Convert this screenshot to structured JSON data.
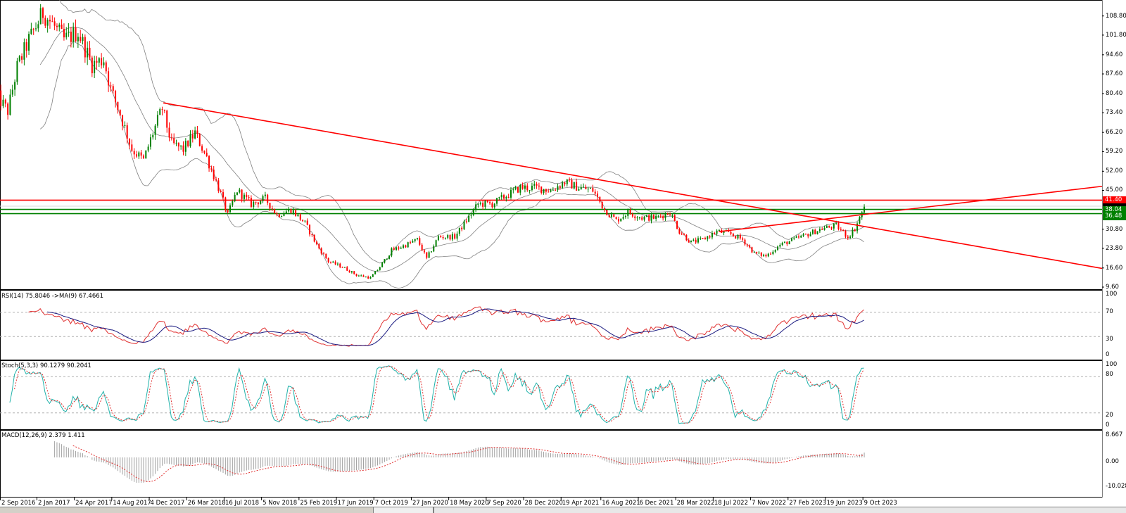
{
  "chart_data": {
    "type": "candlestick",
    "timeframe_note": "",
    "price_axis": {
      "ticks": [
        "108.80",
        "101.80",
        "94.60",
        "87.60",
        "80.40",
        "73.40",
        "66.20",
        "59.20",
        "52.00",
        "45.00",
        "30.80",
        "23.80",
        "16.60",
        "9.60"
      ],
      "range": [
        9.6,
        108.8
      ]
    },
    "price_path": [
      [
        "2016-09-02",
        80
      ],
      [
        "2016-10-07",
        74
      ],
      [
        "2016-11-04",
        90
      ],
      [
        "2016-12-09",
        100
      ],
      [
        "2017-01-20",
        110
      ],
      [
        "2017-02-17",
        106
      ],
      [
        "2017-03-24",
        100
      ],
      [
        "2017-05-05",
        103
      ],
      [
        "2017-06-16",
        91
      ],
      [
        "2017-07-21",
        93
      ],
      [
        "2017-08-11",
        82
      ],
      [
        "2017-09-08",
        73
      ],
      [
        "2017-10-13",
        60
      ],
      [
        "2017-11-17",
        56
      ],
      [
        "2017-12-15",
        66
      ],
      [
        "2018-01-12",
        75
      ],
      [
        "2018-02-09",
        62
      ],
      [
        "2018-03-16",
        60
      ],
      [
        "2018-04-20",
        66
      ],
      [
        "2018-05-25",
        57
      ],
      [
        "2018-06-29",
        46
      ],
      [
        "2018-07-27",
        36
      ],
      [
        "2018-08-24",
        45
      ],
      [
        "2018-10-05",
        40
      ],
      [
        "2018-11-16",
        42
      ],
      [
        "2018-12-21",
        36
      ],
      [
        "2019-02-01",
        38
      ],
      [
        "2019-03-15",
        33
      ],
      [
        "2019-04-19",
        25
      ],
      [
        "2019-05-24",
        19
      ],
      [
        "2019-07-05",
        17
      ],
      [
        "2019-08-16",
        14
      ],
      [
        "2019-09-27",
        13
      ],
      [
        "2019-10-25",
        17
      ],
      [
        "2019-11-29",
        23
      ],
      [
        "2020-01-10",
        25
      ],
      [
        "2020-02-14",
        27
      ],
      [
        "2020-03-13",
        20
      ],
      [
        "2020-04-17",
        28
      ],
      [
        "2020-06-05",
        28
      ],
      [
        "2020-07-10",
        34
      ],
      [
        "2020-08-14",
        40
      ],
      [
        "2020-09-25",
        40
      ],
      [
        "2020-11-06",
        43
      ],
      [
        "2020-12-18",
        46
      ],
      [
        "2021-02-05",
        46
      ],
      [
        "2021-03-19",
        45
      ],
      [
        "2021-04-30",
        48
      ],
      [
        "2021-06-11",
        46
      ],
      [
        "2021-07-23",
        45
      ],
      [
        "2021-08-27",
        38
      ],
      [
        "2021-10-01",
        34
      ],
      [
        "2021-11-05",
        37
      ],
      [
        "2021-12-17",
        35
      ],
      [
        "2022-01-28",
        35
      ],
      [
        "2022-03-11",
        37
      ],
      [
        "2022-04-08",
        30
      ],
      [
        "2022-05-13",
        26
      ],
      [
        "2022-06-17",
        27
      ],
      [
        "2022-07-29",
        30
      ],
      [
        "2022-09-09",
        29
      ],
      [
        "2022-10-14",
        27
      ],
      [
        "2022-11-18",
        22
      ],
      [
        "2022-12-23",
        21
      ],
      [
        "2023-02-03",
        25
      ],
      [
        "2023-03-17",
        27
      ],
      [
        "2023-04-28",
        29
      ],
      [
        "2023-06-09",
        31
      ],
      [
        "2023-07-21",
        32
      ],
      [
        "2023-08-25",
        28
      ],
      [
        "2023-09-15",
        31
      ],
      [
        "2023-10-13",
        39
      ]
    ],
    "overlays": {
      "bollinger_bands": {
        "period": 20,
        "deviation": 2,
        "color": "#808080"
      }
    },
    "levels": [
      {
        "price": 41.4,
        "label": "41.40",
        "color": "#ff0000"
      },
      {
        "price": 38.04,
        "label": "38.04",
        "color": "#008000"
      },
      {
        "price": 36.48,
        "label": "36.48",
        "color": "#008000"
      }
    ],
    "trendlines": [
      {
        "start": {
          "date": "2018-01-16",
          "price": 77.0
        },
        "end": {
          "date": "2025-08-29",
          "price": 17.0
        },
        "color": "#ff0000"
      },
      {
        "start": {
          "date": "2022-08-05",
          "price": 29.9
        },
        "end": {
          "date": "2025-08-29",
          "price": 46.1
        },
        "color": "#ff0000"
      }
    ],
    "x_axis_labels": [
      [
        "2016-09-02",
        "2 Sep 2016"
      ],
      [
        "2017-01-02",
        "2 Jan 2017"
      ],
      [
        "2017-04-24",
        "24 Apr 2017"
      ],
      [
        "2017-08-14",
        "14 Aug 2017"
      ],
      [
        "2017-12-04",
        "4 Dec 2017"
      ],
      [
        "2018-03-26",
        "26 Mar 2018"
      ],
      [
        "2018-07-16",
        "16 Jul 2018"
      ],
      [
        "2018-11-05",
        "5 Nov 2018"
      ],
      [
        "2019-02-25",
        "25 Feb 2019"
      ],
      [
        "2019-06-17",
        "17 Jun 2019"
      ],
      [
        "2019-10-07",
        "7 Oct 2019"
      ],
      [
        "2020-01-27",
        "27 Jan 2020"
      ],
      [
        "2020-05-18",
        "18 May 2020"
      ],
      [
        "2020-09-07",
        "7 Sep 2020"
      ],
      [
        "2020-12-28",
        "28 Dec 2020"
      ],
      [
        "2021-04-19",
        "19 Apr 2021"
      ],
      [
        "2021-08-16",
        "16 Aug 2021"
      ],
      [
        "2021-12-06",
        "6 Dec 2021"
      ],
      [
        "2022-03-28",
        "28 Mar 2022"
      ],
      [
        "2022-07-18",
        "18 Jul 2022"
      ],
      [
        "2022-11-07",
        "7 Nov 2022"
      ],
      [
        "2023-02-27",
        "27 Feb 2023"
      ],
      [
        "2023-06-19",
        "19 Jun 2023"
      ],
      [
        "2023-10-09",
        "9 Oct 2023"
      ]
    ],
    "colors": {
      "bull": "#008000",
      "bear": "#ff0000",
      "background": "#ffffff"
    }
  },
  "indicators": {
    "rsi": {
      "title": "RSI(14) 75.8046  ->MA(9) 67.4661",
      "period": 14,
      "ma_period": 9,
      "ticks": [
        "100",
        "70",
        "30",
        "0"
      ],
      "levels": [
        70,
        30
      ],
      "line_color": "#e03030",
      "ma_color": "#1a1a80"
    },
    "stoch": {
      "title": "Stoch(5,3,3) 90.1279 90.2041",
      "k": 5,
      "d": 3,
      "slowing": 3,
      "ticks": [
        "100",
        "80",
        "20",
        "0"
      ],
      "levels": [
        80,
        20
      ],
      "k_color": "#20b2aa",
      "d_color": "#e03030"
    },
    "macd": {
      "title": "MACD(12,26,9) 2.379 1.411",
      "fast": 12,
      "slow": 26,
      "signal": 9,
      "ticks": [
        "8.667",
        "0.00",
        "-10.028"
      ],
      "range": [
        -10.028,
        8.667
      ],
      "hist_color": "#a0a0a0",
      "signal_color": "#e03030"
    }
  }
}
